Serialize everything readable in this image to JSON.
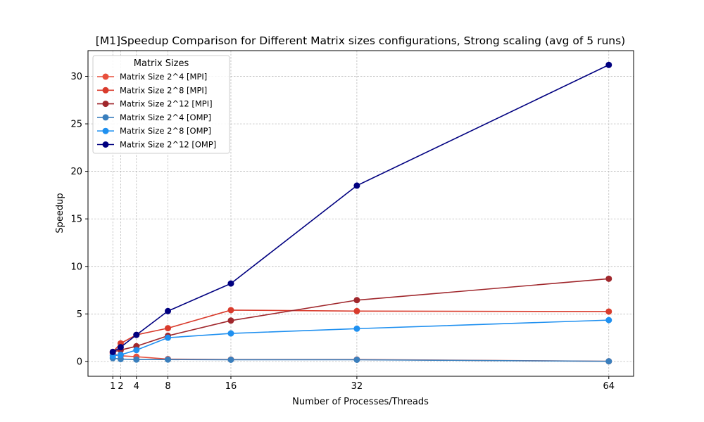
{
  "chart_data": {
    "type": "line",
    "title": "[M1]Speedup Comparison for Different Matrix sizes configurations, Strong scaling (avg of 5 runs)",
    "xlabel": "Number of Processes/Threads",
    "ylabel": "Speedup",
    "x": [
      1,
      2,
      4,
      8,
      16,
      32,
      64
    ],
    "xticks": [
      1,
      2,
      4,
      8,
      16,
      32,
      64
    ],
    "yticks": [
      0,
      5,
      10,
      15,
      20,
      25,
      30
    ],
    "xlim": [
      -2.15,
      67.15
    ],
    "ylim": [
      -1.56,
      32.7
    ],
    "grid": true,
    "legend": {
      "title": "Matrix Sizes",
      "placement": "top-left"
    },
    "series": [
      {
        "name": "Matrix Size 2^4 [MPI]",
        "color": "#e8503d",
        "values": [
          0.8,
          0.6,
          0.5,
          0.25,
          0.2,
          0.2,
          0.02
        ]
      },
      {
        "name": "Matrix Size 2^8 [MPI]",
        "color": "#d93b2c",
        "values": [
          1.0,
          1.9,
          2.8,
          3.5,
          5.4,
          5.3,
          5.25
        ]
      },
      {
        "name": "Matrix Size 2^12 [MPI]",
        "color": "#a0272c",
        "values": [
          1.0,
          1.2,
          1.6,
          2.7,
          4.3,
          6.45,
          8.7
        ]
      },
      {
        "name": "Matrix Size 2^4 [OMP]",
        "color": "#3a7fbd",
        "values": [
          0.35,
          0.25,
          0.2,
          0.2,
          0.18,
          0.18,
          0.02
        ]
      },
      {
        "name": "Matrix Size 2^8 [OMP]",
        "color": "#1f90f0",
        "values": [
          0.6,
          0.7,
          1.2,
          2.5,
          2.95,
          3.45,
          4.35
        ]
      },
      {
        "name": "Matrix Size 2^12 [OMP]",
        "color": "#000080",
        "values": [
          1.0,
          1.5,
          2.8,
          5.3,
          8.2,
          18.5,
          31.2
        ]
      }
    ]
  }
}
